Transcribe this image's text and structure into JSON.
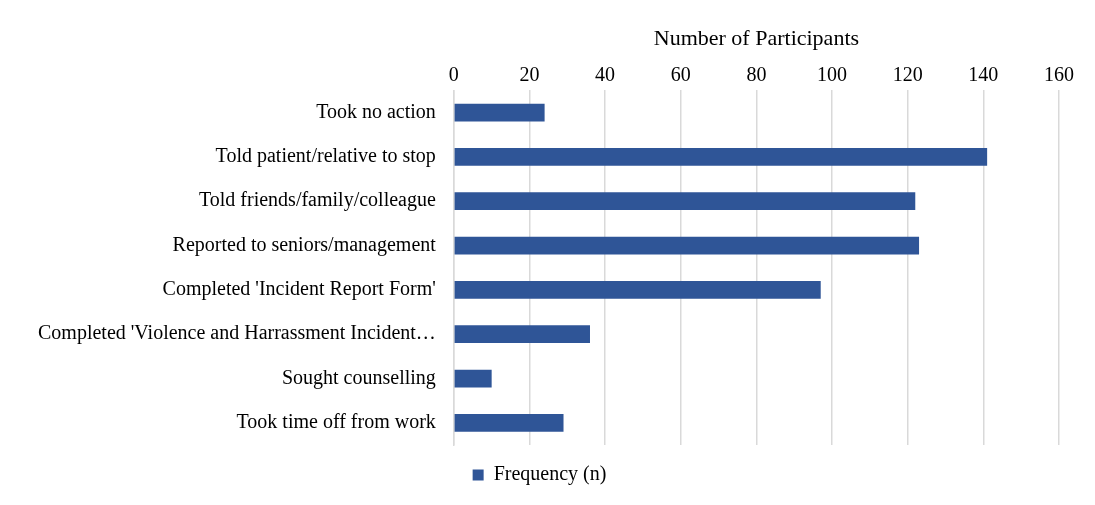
{
  "chart_data": {
    "type": "bar",
    "orientation": "horizontal",
    "xlabel": "Number of Participants",
    "categories": [
      "Took no action",
      "Told patient/relative to stop",
      "Told friends/family/colleague",
      "Reported to seniors/management",
      "Completed 'Incident Report Form'",
      "Completed 'Violence and Harrassment Incident…",
      "Sought counselling",
      "Took time off from work"
    ],
    "series": [
      {
        "name": "Frequency (n)",
        "color": "#2f5597",
        "values": [
          24,
          141,
          122,
          123,
          97,
          36,
          10,
          29
        ]
      }
    ],
    "xlim": [
      0,
      160
    ],
    "xticks": [
      0,
      20,
      40,
      60,
      80,
      100,
      120,
      140,
      160
    ],
    "grid": "x",
    "legend": "bottom"
  }
}
